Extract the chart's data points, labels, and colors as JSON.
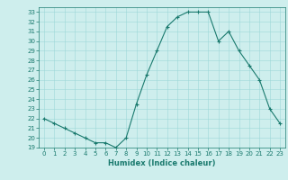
{
  "x": [
    0,
    1,
    2,
    3,
    4,
    5,
    6,
    7,
    8,
    9,
    10,
    11,
    12,
    13,
    14,
    15,
    16,
    17,
    18,
    19,
    20,
    21,
    22,
    23
  ],
  "y": [
    22,
    21.5,
    21,
    20.5,
    20,
    19.5,
    19.5,
    19,
    20,
    23.5,
    26.5,
    29,
    31.5,
    32.5,
    33,
    33,
    33,
    30,
    31,
    29,
    27.5,
    26,
    23,
    21.5
  ],
  "line_color": "#1a7a6e",
  "marker": "+",
  "marker_size": 3,
  "marker_linewidth": 0.8,
  "bg_color": "#ceeeed",
  "grid_color": "#9dd8d8",
  "xlabel": "Humidex (Indice chaleur)",
  "ylim": [
    19,
    33.5
  ],
  "xlim": [
    -0.5,
    23.5
  ],
  "yticks": [
    19,
    20,
    21,
    22,
    23,
    24,
    25,
    26,
    27,
    28,
    29,
    30,
    31,
    32,
    33
  ],
  "xticks": [
    0,
    1,
    2,
    3,
    4,
    5,
    6,
    7,
    8,
    9,
    10,
    11,
    12,
    13,
    14,
    15,
    16,
    17,
    18,
    19,
    20,
    21,
    22,
    23
  ],
  "tick_fontsize": 5,
  "xlabel_fontsize": 6,
  "linewidth": 0.8,
  "spine_color": "#1a7a6e"
}
